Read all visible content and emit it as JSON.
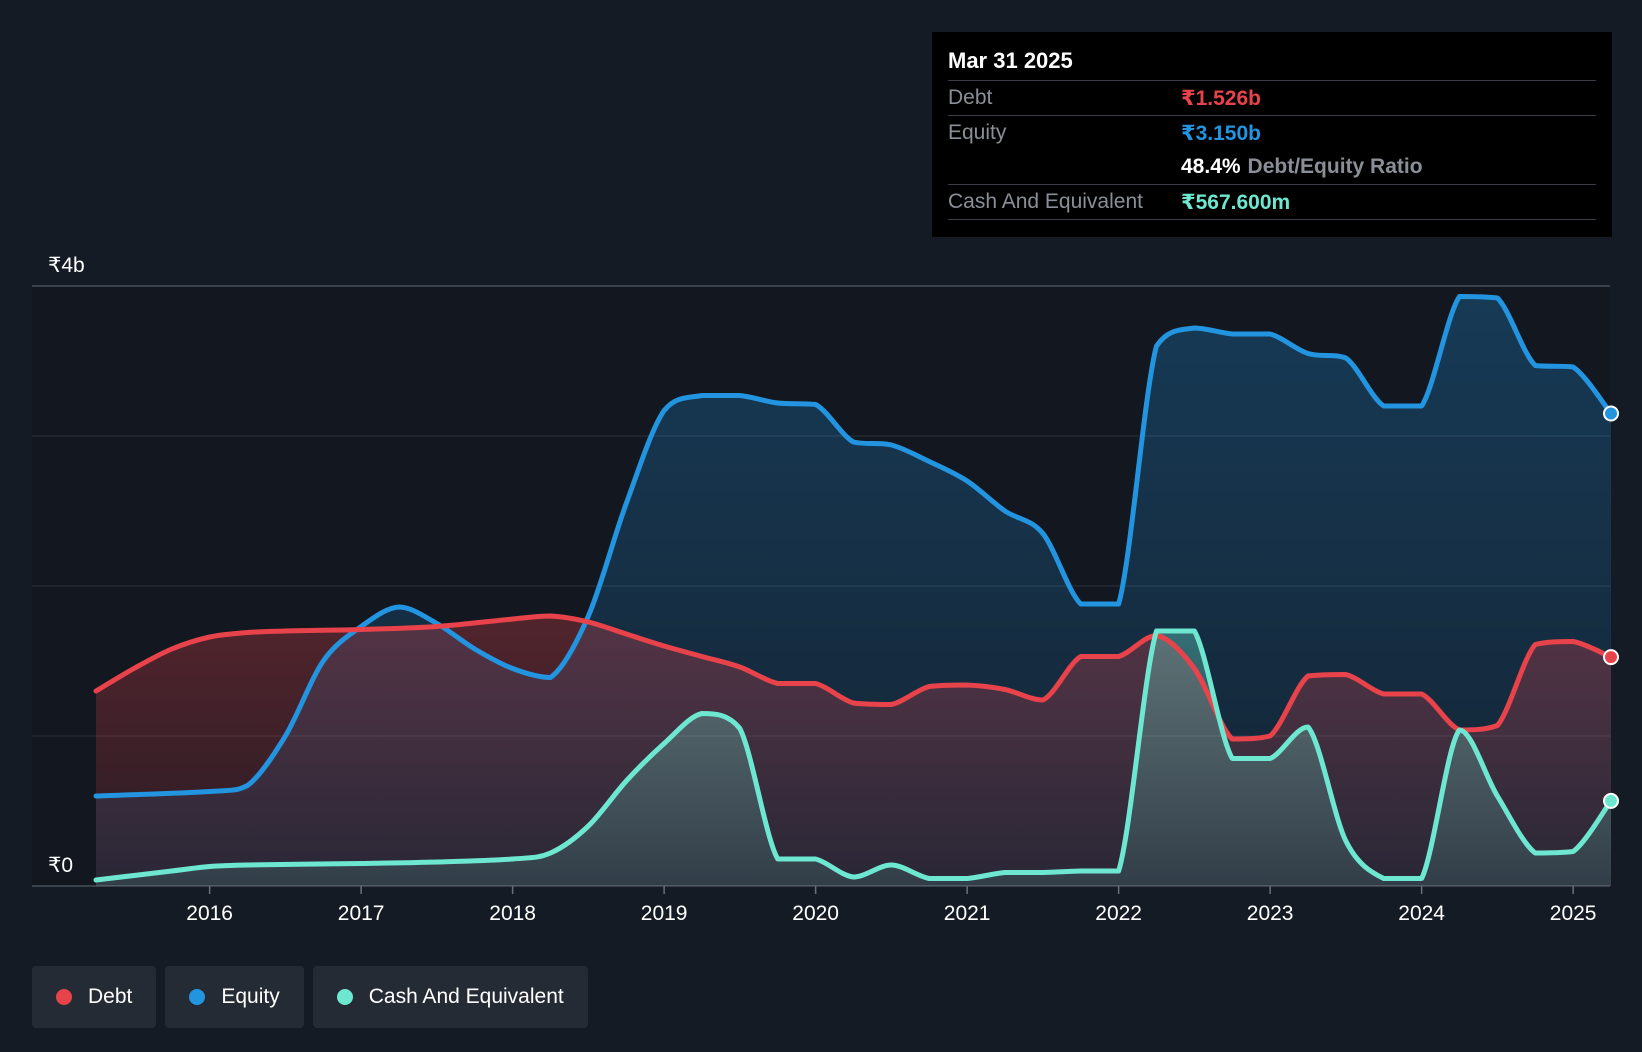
{
  "colors": {
    "debt": "#e8434a",
    "equity": "#2394df",
    "cash": "#6ee7d1",
    "background": "#151b24",
    "plot_background": "#121720"
  },
  "tooltip": {
    "date": "Mar 31 2025",
    "debt_label": "Debt",
    "debt_value": "₹1.526b",
    "equity_label": "Equity",
    "equity_value": "₹3.150b",
    "ratio_value": "48.4%",
    "ratio_label": "Debt/Equity Ratio",
    "cash_label": "Cash And Equivalent",
    "cash_value": "₹567.600m"
  },
  "legend": [
    {
      "label": "Debt",
      "color": "#e8434a"
    },
    {
      "label": "Equity",
      "color": "#2394df"
    },
    {
      "label": "Cash And Equivalent",
      "color": "#6ee7d1"
    }
  ],
  "chart_data": {
    "type": "area",
    "title": "",
    "xlabel": "",
    "ylabel": "",
    "x_range": [
      2015.25,
      2025.25
    ],
    "ylim": [
      0,
      4
    ],
    "y_ticks": [
      {
        "value": 0,
        "label": "₹0"
      },
      {
        "value": 4,
        "label": "₹4b"
      }
    ],
    "gridlines_y": [
      0,
      1,
      2,
      3,
      4
    ],
    "x_ticks": [
      {
        "value": 2016,
        "label": "2016"
      },
      {
        "value": 2017,
        "label": "2017"
      },
      {
        "value": 2018,
        "label": "2018"
      },
      {
        "value": 2019,
        "label": "2019"
      },
      {
        "value": 2020,
        "label": "2020"
      },
      {
        "value": 2021,
        "label": "2021"
      },
      {
        "value": 2022,
        "label": "2022"
      },
      {
        "value": 2023,
        "label": "2023"
      },
      {
        "value": 2024,
        "label": "2024"
      },
      {
        "value": 2025,
        "label": "2025"
      }
    ],
    "highlight_x": 2025.25,
    "series": [
      {
        "name": "Equity",
        "key": "equity",
        "points": [
          [
            2015.25,
            0.6
          ],
          [
            2016.0,
            0.63
          ],
          [
            2016.25,
            0.67
          ],
          [
            2016.5,
            1.0
          ],
          [
            2016.75,
            1.5
          ],
          [
            2017.0,
            1.73
          ],
          [
            2017.25,
            1.86
          ],
          [
            2017.5,
            1.75
          ],
          [
            2017.75,
            1.58
          ],
          [
            2018.0,
            1.45
          ],
          [
            2018.25,
            1.39
          ],
          [
            2018.5,
            1.8
          ],
          [
            2018.75,
            2.55
          ],
          [
            2019.0,
            3.17
          ],
          [
            2019.25,
            3.27
          ],
          [
            2019.5,
            3.27
          ],
          [
            2019.75,
            3.22
          ],
          [
            2020.0,
            3.21
          ],
          [
            2020.25,
            2.96
          ],
          [
            2020.5,
            2.94
          ],
          [
            2020.75,
            2.83
          ],
          [
            2021.0,
            2.7
          ],
          [
            2021.25,
            2.5
          ],
          [
            2021.5,
            2.35
          ],
          [
            2021.75,
            1.88
          ],
          [
            2022.0,
            1.88
          ],
          [
            2022.25,
            3.6
          ],
          [
            2022.5,
            3.72
          ],
          [
            2022.75,
            3.68
          ],
          [
            2023.0,
            3.68
          ],
          [
            2023.25,
            3.55
          ],
          [
            2023.5,
            3.52
          ],
          [
            2023.75,
            3.2
          ],
          [
            2024.0,
            3.2
          ],
          [
            2024.25,
            3.93
          ],
          [
            2024.5,
            3.92
          ],
          [
            2024.75,
            3.47
          ],
          [
            2025.0,
            3.46
          ],
          [
            2025.25,
            3.15
          ]
        ]
      },
      {
        "name": "Debt",
        "key": "debt",
        "points": [
          [
            2015.25,
            1.3
          ],
          [
            2015.5,
            1.45
          ],
          [
            2015.75,
            1.58
          ],
          [
            2016.0,
            1.66
          ],
          [
            2016.25,
            1.69
          ],
          [
            2016.5,
            1.7
          ],
          [
            2017.0,
            1.71
          ],
          [
            2017.5,
            1.73
          ],
          [
            2018.0,
            1.78
          ],
          [
            2018.25,
            1.8
          ],
          [
            2018.5,
            1.76
          ],
          [
            2018.75,
            1.68
          ],
          [
            2019.0,
            1.6
          ],
          [
            2019.25,
            1.53
          ],
          [
            2019.5,
            1.46
          ],
          [
            2019.75,
            1.35
          ],
          [
            2020.0,
            1.35
          ],
          [
            2020.25,
            1.22
          ],
          [
            2020.5,
            1.21
          ],
          [
            2020.75,
            1.33
          ],
          [
            2021.0,
            1.34
          ],
          [
            2021.25,
            1.31
          ],
          [
            2021.5,
            1.24
          ],
          [
            2021.75,
            1.53
          ],
          [
            2022.0,
            1.53
          ],
          [
            2022.25,
            1.67
          ],
          [
            2022.5,
            1.45
          ],
          [
            2022.75,
            0.98
          ],
          [
            2023.0,
            1.0
          ],
          [
            2023.25,
            1.4
          ],
          [
            2023.5,
            1.41
          ],
          [
            2023.75,
            1.28
          ],
          [
            2024.0,
            1.28
          ],
          [
            2024.25,
            1.04
          ],
          [
            2024.5,
            1.07
          ],
          [
            2024.75,
            1.61
          ],
          [
            2025.0,
            1.63
          ],
          [
            2025.25,
            1.526
          ]
        ]
      },
      {
        "name": "Cash And Equivalent",
        "key": "cash",
        "points": [
          [
            2015.25,
            0.04
          ],
          [
            2015.75,
            0.1
          ],
          [
            2016.0,
            0.13
          ],
          [
            2016.25,
            0.14
          ],
          [
            2017.0,
            0.15
          ],
          [
            2017.5,
            0.16
          ],
          [
            2018.0,
            0.18
          ],
          [
            2018.25,
            0.22
          ],
          [
            2018.5,
            0.4
          ],
          [
            2018.75,
            0.7
          ],
          [
            2019.0,
            0.95
          ],
          [
            2019.25,
            1.15
          ],
          [
            2019.5,
            1.05
          ],
          [
            2019.75,
            0.18
          ],
          [
            2020.0,
            0.18
          ],
          [
            2020.25,
            0.06
          ],
          [
            2020.5,
            0.14
          ],
          [
            2020.75,
            0.05
          ],
          [
            2021.0,
            0.05
          ],
          [
            2021.25,
            0.09
          ],
          [
            2021.5,
            0.09
          ],
          [
            2021.75,
            0.1
          ],
          [
            2022.0,
            0.1
          ],
          [
            2022.25,
            1.7
          ],
          [
            2022.5,
            1.7
          ],
          [
            2022.75,
            0.85
          ],
          [
            2023.0,
            0.85
          ],
          [
            2023.25,
            1.06
          ],
          [
            2023.5,
            0.3
          ],
          [
            2023.75,
            0.05
          ],
          [
            2024.0,
            0.05
          ],
          [
            2024.25,
            1.04
          ],
          [
            2024.5,
            0.6
          ],
          [
            2024.75,
            0.22
          ],
          [
            2025.0,
            0.23
          ],
          [
            2025.25,
            0.5676
          ]
        ]
      }
    ]
  }
}
